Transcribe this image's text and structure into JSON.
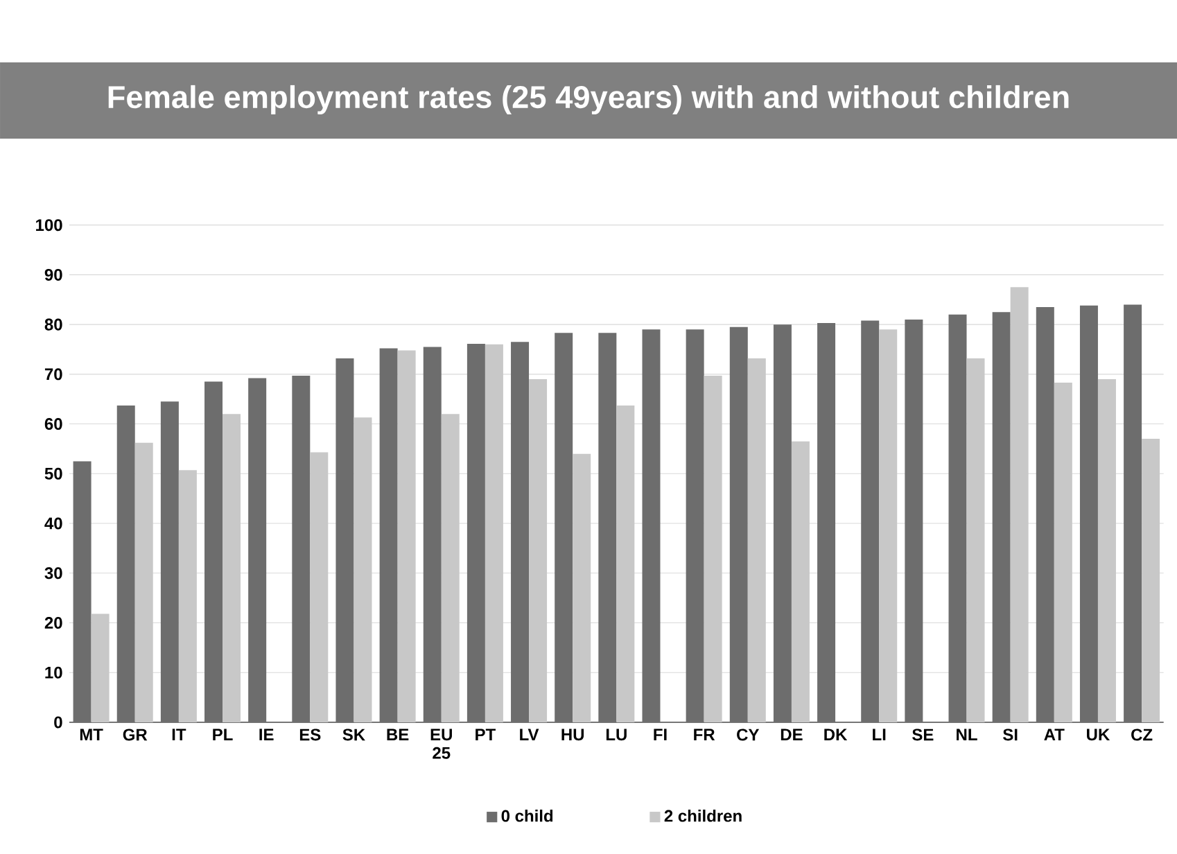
{
  "chart_data": {
    "type": "bar",
    "title": "Female employment rates (25 49years) with and without children",
    "categories": [
      "MT",
      "GR",
      "IT",
      "PL",
      "IE",
      "ES",
      "SK",
      "BE",
      "EU 25",
      "PT",
      "LV",
      "HU",
      "LU",
      "FI",
      "FR",
      "CY",
      "DE",
      "DK",
      "LI",
      "SE",
      "NL",
      "SI",
      "AT",
      "UK",
      "CZ"
    ],
    "series": [
      {
        "name": "0 child",
        "color": "#6d6d6d",
        "values": [
          52.5,
          63.7,
          64.5,
          68.5,
          69.2,
          69.7,
          73.2,
          75.2,
          75.5,
          76.1,
          76.5,
          78.3,
          78.3,
          79,
          79,
          79.5,
          80,
          80.3,
          80.8,
          81,
          82,
          82.5,
          83.5,
          83.8,
          84
        ]
      },
      {
        "name": "2 children",
        "color": "#c8c8c8",
        "values": [
          21.8,
          56.2,
          50.7,
          62,
          null,
          54.3,
          61.3,
          74.8,
          62,
          76,
          69,
          54,
          63.7,
          null,
          69.7,
          73.2,
          56.5,
          null,
          79,
          null,
          73.2,
          87.5,
          68.3,
          69,
          57
        ]
      }
    ],
    "ylim": [
      0,
      100
    ],
    "yticks": [
      0,
      10,
      20,
      30,
      40,
      50,
      60,
      70,
      80,
      90,
      100
    ],
    "grid": "y",
    "legend": "bottom"
  }
}
